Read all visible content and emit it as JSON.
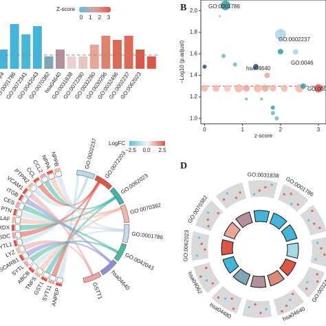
{
  "chart_data": [
    {
      "type": "bar",
      "categories": [
        "24",
        "GO:0001786",
        "GO:0072341",
        "GO:0042043",
        "GO:0070382",
        "hsa04640",
        "GO:0031838",
        "GO:0072280",
        "GO:0032280",
        "GO:0030296",
        "GO:0032496",
        "GO:0002237",
        "GO:0062023",
        null
      ],
      "values": [
        28,
        65,
        50,
        62,
        18,
        28,
        18,
        18,
        35,
        48,
        42,
        48,
        28,
        18
      ],
      "colors": [
        "#45b4d6",
        "#45b4d6",
        "#4ab6d6",
        "#45b4d6",
        "#7fa6b5",
        "#b3919c",
        "#ead0cf",
        "#e8c6c3",
        "#e9a597",
        "#e0806f",
        "#d96a5a",
        "#dc6a58",
        "#d9584a",
        "#d9584a"
      ],
      "ylim": [
        0,
        100
      ],
      "threshold": 20,
      "legend_title": "Z-score",
      "legend_ticks": [
        0,
        1,
        2,
        3
      ],
      "legend_colors": [
        "#5bc0de",
        "#d8a4a0",
        "#d9584a"
      ]
    },
    {
      "type": "scatter",
      "panel": "B",
      "x": [
        0.55,
        2.0,
        1.35,
        0,
        0,
        0.3,
        0.6,
        0.9,
        1.1,
        1.4,
        1.6,
        1.8,
        2.1,
        2.5,
        3.0,
        2.6,
        2.4,
        2.0,
        0.5,
        0.8,
        1.65,
        1.8,
        1.8,
        1.5,
        1.1,
        1.9,
        0.4
      ],
      "values": [
        2.05,
        1.78,
        1.48,
        1.48,
        1.28,
        1.28,
        1.28,
        1.28,
        1.28,
        1.28,
        1.28,
        1.28,
        1.28,
        1.28,
        1.28,
        1.3,
        1.62,
        1.62,
        1.58,
        1.5,
        1.4,
        1.1,
        1.05,
        1.18,
        1.18,
        1.0,
        1.95
      ],
      "sizes": [
        7,
        8,
        4,
        3,
        5,
        5,
        5,
        6,
        5,
        6,
        5,
        5,
        5,
        6,
        6,
        4,
        4,
        4,
        3,
        3,
        4,
        3,
        3,
        2,
        2,
        3,
        2
      ],
      "colors": [
        "#3a9aa0",
        "#a9d6e5",
        "#2f4e7a",
        "#2f4e7a",
        "#f2b7a7",
        "#f2b7a7",
        "#f4c4b8",
        "#f2b7a7",
        "#e8a5a5",
        "#f2b7a7",
        "#e8a5a5",
        "#f2b7a7",
        "#f2b7a7",
        "#f2b7a7",
        "#d9584a",
        "#3a9aa0",
        "#a9d6e5",
        "#3a9aa0",
        "#6fb7bd",
        "#6fb7bd",
        "#e8a5a5",
        "#3a9aa0",
        "#6fb7bd",
        "#6fb7bd",
        "#6fb7bd",
        "#6fb7bd",
        "#a9d6e5"
      ],
      "annotations": [
        "GO:0001786",
        "GO:0002237",
        "hsa04640",
        "GO:0046",
        "GO:000"
      ],
      "xlim": [
        -0.1,
        3.2
      ],
      "ylim": [
        0.95,
        2.1
      ],
      "xticks": [
        0,
        1,
        2,
        3
      ],
      "yticks": [
        {
          "value": 1.0,
          "label": "1.0"
        },
        1.2,
        1.4,
        1.6,
        1.8,
        {
          "value": 2.0,
          "label": "2.0"
        }
      ],
      "xlabel": "z-score",
      "ylabel": "−Log10 (p.adjust)",
      "threshold": 1.3
    },
    {
      "type": "chord",
      "sets": [
        "GO:0002237",
        "GO:0072203",
        "GO:0062023",
        "GO:0070382",
        "GO:0001786",
        "GO:0042043",
        "hsa04640",
        "GSTT1"
      ],
      "set_colors": [
        "#b9dbe6",
        "#d9584a",
        "#47b3a8",
        "#f0b8a8",
        "#c7dbe8",
        "#4fb8a0",
        "#8c8fd0",
        "#e8a5a5"
      ],
      "genes": [
        "ANPEP",
        "SYT11",
        "GST1",
        "TNFS",
        "ABCB",
        "SYTL",
        "SCARB1",
        "LYZ",
        "CYTL1",
        "SDC",
        "PRDX",
        "SLAF",
        "PTN",
        "CES",
        "ITGB",
        "VCAM1",
        "PTPRZ",
        "CCL",
        "CCL2",
        "NPPA",
        "NPPB"
      ],
      "gene_colors": [
        "#d9584a",
        "#e8a5a5",
        "#d9584a",
        "#f2b7a7",
        "#d9584a",
        "#e8a5a5",
        "#d9584a",
        "#f2b7a7",
        "#d9584a",
        "#e8a5a5",
        "#d9584a",
        "#f2b7a7",
        "#d9584a",
        "#e8a5a5",
        "#d9584a",
        "#d9584a",
        "#f2b7a7",
        "#d9584a",
        "#e8a5a5",
        "#d9584a",
        "#f2b7a7"
      ],
      "legend_title": "LogFC",
      "legend_ticks": [
        {
          "value": -2.5,
          "label": "−2.5"
        },
        {
          "value": 0,
          "label": "0.0"
        },
        2.5
      ],
      "legend_colors": [
        "#5bc0de",
        "#f5f5f5",
        "#d9584a"
      ]
    },
    {
      "type": "circos",
      "panel": "D",
      "labels": [
        "GO:0031838",
        "GO:0001786",
        null,
        null,
        "GO:0032496",
        "hsa04640",
        null,
        "hsa04480",
        "hsa04062",
        "GO:0062023",
        "GO:0070382",
        null
      ],
      "colors": [
        "#45b4d6",
        "#45b4d6",
        "#45b4d6",
        "#a6d8e8",
        "#d9584a",
        "#d98a7a",
        "#b3919c",
        "#7fa6b5",
        "#45b4d6",
        "#d9584a",
        "#e9a597",
        "#b3919c"
      ]
    }
  ]
}
